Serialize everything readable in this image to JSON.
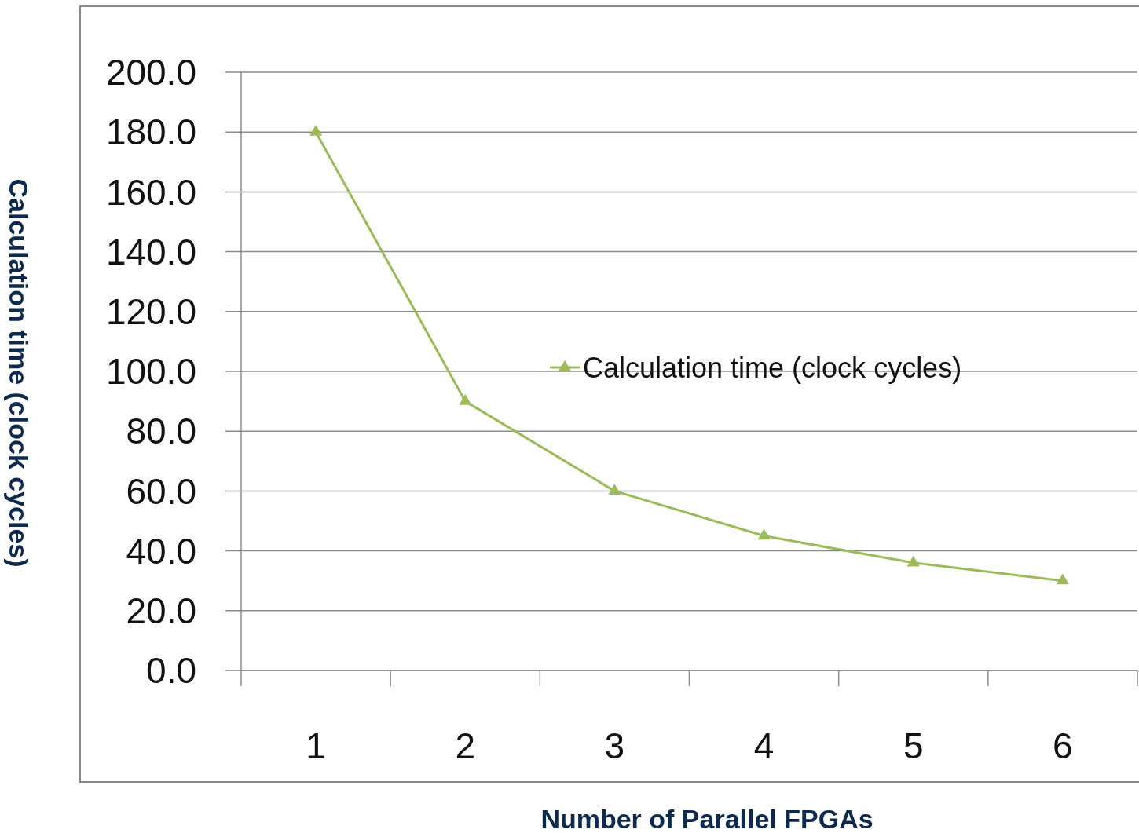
{
  "chart_data": {
    "type": "line",
    "xlabel": "Number of Parallel FPGAs",
    "ylabel": "Calculation time (clock cycles)",
    "categories": [
      "1",
      "2",
      "3",
      "4",
      "5",
      "6"
    ],
    "series": [
      {
        "name": "Calculation time (clock cycles)",
        "color": "#9bbb59",
        "values": [
          180,
          90,
          60,
          45,
          36,
          30
        ]
      }
    ],
    "ylim": [
      0,
      200
    ],
    "yticks": [
      {
        "value": 0,
        "label": "0.0"
      },
      {
        "value": 20,
        "label": "20.0"
      },
      {
        "value": 40,
        "label": "40.0"
      },
      {
        "value": 60,
        "label": "60.0"
      },
      {
        "value": 80,
        "label": "80.0"
      },
      {
        "value": 100,
        "label": "100.0"
      },
      {
        "value": 120,
        "label": "120.0"
      },
      {
        "value": 140,
        "label": "140.0"
      },
      {
        "value": 160,
        "label": "160.0"
      },
      {
        "value": 180,
        "label": "180.0"
      },
      {
        "value": 200,
        "label": "200.0"
      }
    ],
    "grid": "y",
    "legend": "right",
    "marker": "triangle",
    "line_style": "solid"
  }
}
